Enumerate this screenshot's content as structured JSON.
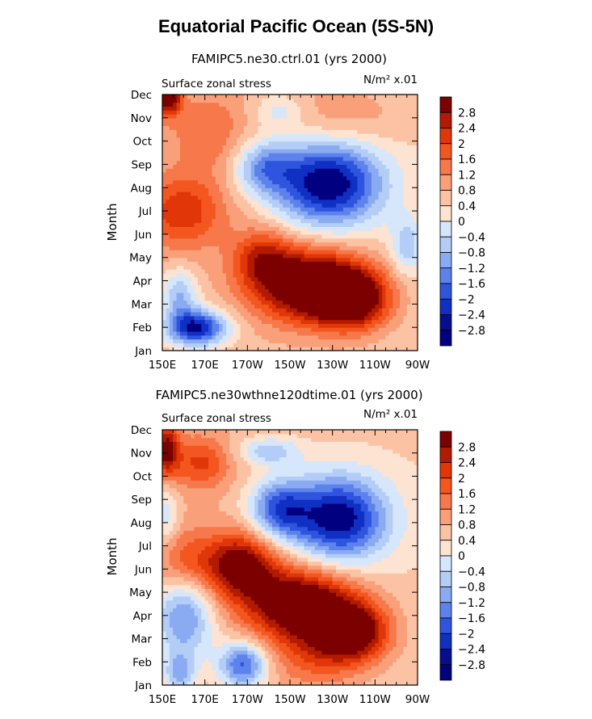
{
  "main_title": "Equatorial Pacific Ocean (5S-5N)",
  "chart_data": [
    {
      "type": "heatmap",
      "title": "FAMIPC5.ne30.ctrl.01 (yrs 2000)",
      "subtitle_left": "Surface zonal stress",
      "subtitle_right": "N/m² x.01",
      "xlabel": "",
      "ylabel": "Month",
      "x_ticks": [
        "150E",
        "170E",
        "170W",
        "150W",
        "130W",
        "110W",
        "90W"
      ],
      "x_tick_lon": [
        150,
        170,
        190,
        210,
        230,
        250,
        270
      ],
      "xlim": [
        150,
        270
      ],
      "y_ticks": [
        "Jan",
        "Feb",
        "Mar",
        "Apr",
        "May",
        "Jun",
        "Jul",
        "Aug",
        "Sep",
        "Oct",
        "Nov",
        "Dec"
      ],
      "ylim": [
        1,
        12
      ],
      "colorbar_levels": [
        "2.8",
        "2.4",
        "2",
        "1.6",
        "1.2",
        "0.8",
        "0.4",
        "0",
        "−0.4",
        "−0.8",
        "−1.2",
        "−1.6",
        "−2",
        "−2.4",
        "−2.8"
      ],
      "blobs": [
        {
          "lon": 153,
          "month": 12.0,
          "amp": 3.0,
          "sx": 4,
          "sy": 0.6
        },
        {
          "lon": 160,
          "month": 7.0,
          "amp": 1.6,
          "sx": 14,
          "sy": 1.1
        },
        {
          "lon": 172,
          "month": 10.4,
          "amp": 0.9,
          "sx": 12,
          "sy": 1.2
        },
        {
          "lon": 235,
          "month": 11.0,
          "amp": 0.6,
          "sx": 20,
          "sy": 1.0
        },
        {
          "lon": 220,
          "month": 3.8,
          "amp": 3.4,
          "sx": 18,
          "sy": 1.1
        },
        {
          "lon": 240,
          "month": 3.2,
          "amp": 2.6,
          "sx": 12,
          "sy": 0.9
        },
        {
          "lon": 197,
          "month": 5.0,
          "amp": 1.6,
          "sx": 10,
          "sy": 0.9
        },
        {
          "lon": 228,
          "month": 8.2,
          "amp": -3.4,
          "sx": 18,
          "sy": 1.3
        },
        {
          "lon": 198,
          "month": 8.9,
          "amp": -1.6,
          "sx": 10,
          "sy": 0.8
        },
        {
          "lon": 166,
          "month": 2.0,
          "amp": -3.2,
          "sx": 10,
          "sy": 0.55
        },
        {
          "lon": 158,
          "month": 3.4,
          "amp": -1.5,
          "sx": 6,
          "sy": 0.8
        },
        {
          "lon": 265,
          "month": 5.5,
          "amp": -1.2,
          "sx": 5,
          "sy": 0.8
        },
        {
          "lon": 205,
          "month": 11.3,
          "amp": -0.8,
          "sx": 8,
          "sy": 0.5
        }
      ]
    },
    {
      "type": "heatmap",
      "title": "FAMIPC5.ne30wthne120dtime.01 (yrs 2000)",
      "subtitle_left": "Surface zonal stress",
      "subtitle_right": "N/m² x.01",
      "xlabel": "",
      "ylabel": "Month",
      "x_ticks": [
        "150E",
        "170E",
        "170W",
        "150W",
        "130W",
        "110W",
        "90W"
      ],
      "x_tick_lon": [
        150,
        170,
        190,
        210,
        230,
        250,
        270
      ],
      "xlim": [
        150,
        270
      ],
      "y_ticks": [
        "Jan",
        "Feb",
        "Mar",
        "Apr",
        "May",
        "Jun",
        "Jul",
        "Aug",
        "Sep",
        "Oct",
        "Nov",
        "Dec"
      ],
      "ylim": [
        1,
        12
      ],
      "colorbar_levels": [
        "2.8",
        "2.4",
        "2",
        "1.6",
        "1.2",
        "0.8",
        "0.4",
        "0",
        "−0.4",
        "−0.8",
        "−1.2",
        "−1.6",
        "−2",
        "−2.4",
        "−2.8"
      ],
      "blobs": [
        {
          "lon": 152,
          "month": 11.2,
          "amp": 2.2,
          "sx": 4,
          "sy": 0.8
        },
        {
          "lon": 168,
          "month": 10.6,
          "amp": 1.4,
          "sx": 10,
          "sy": 0.8
        },
        {
          "lon": 186,
          "month": 6.2,
          "amp": 2.6,
          "sx": 12,
          "sy": 1.0
        },
        {
          "lon": 215,
          "month": 4.5,
          "amp": 3.2,
          "sx": 18,
          "sy": 1.1
        },
        {
          "lon": 240,
          "month": 3.3,
          "amp": 2.8,
          "sx": 12,
          "sy": 0.9
        },
        {
          "lon": 160,
          "month": 6.3,
          "amp": 1.2,
          "sx": 10,
          "sy": 1.0
        },
        {
          "lon": 222,
          "month": 2.2,
          "amp": 1.0,
          "sx": 15,
          "sy": 1.0
        },
        {
          "lon": 233,
          "month": 8.2,
          "amp": -3.3,
          "sx": 16,
          "sy": 1.3
        },
        {
          "lon": 205,
          "month": 8.6,
          "amp": -2.2,
          "sx": 10,
          "sy": 0.9
        },
        {
          "lon": 200,
          "month": 11.1,
          "amp": -1.3,
          "sx": 10,
          "sy": 0.4
        },
        {
          "lon": 160,
          "month": 4.0,
          "amp": -2.0,
          "sx": 10,
          "sy": 1.4
        },
        {
          "lon": 188,
          "month": 1.9,
          "amp": -2.4,
          "sx": 8,
          "sy": 0.7
        },
        {
          "lon": 158,
          "month": 1.5,
          "amp": -1.5,
          "sx": 5,
          "sy": 0.6
        },
        {
          "lon": 152,
          "month": 8.3,
          "amp": -1.0,
          "sx": 4,
          "sy": 1.0
        }
      ]
    }
  ]
}
